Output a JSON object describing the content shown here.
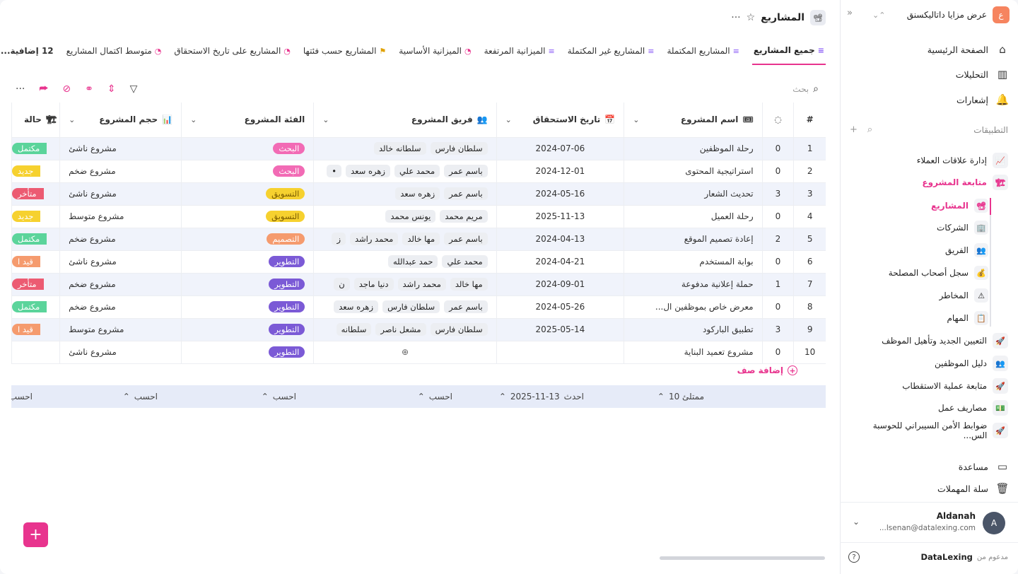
{
  "workspace": {
    "badge": "ع",
    "name": "عرض مزايا داتاليكسنق"
  },
  "nav": [
    {
      "label": "الصفحة الرئيسية",
      "icon": "home-icon"
    },
    {
      "label": "التحليلات",
      "icon": "analytics-icon"
    },
    {
      "label": "إشعارات",
      "icon": "bell-icon"
    }
  ],
  "apps_title": "التطبيقات",
  "apps": [
    {
      "label": "إدارة علاقات العملاء",
      "icon": "📈"
    },
    {
      "label": "متابعة المشروع",
      "icon": "🏗",
      "active": true
    }
  ],
  "sub_items": [
    {
      "label": "المشاريع",
      "icon": "📽",
      "active": true
    },
    {
      "label": "الشركات",
      "icon": "🏢"
    },
    {
      "label": "الفريق",
      "icon": "👥"
    },
    {
      "label": "سجل أصحاب المصلحة",
      "icon": "💰"
    },
    {
      "label": "المخاطر",
      "icon": "⚠"
    },
    {
      "label": "المهام",
      "icon": "📋"
    }
  ],
  "apps_more": [
    {
      "label": "التعيين الجديد وتأهيل الموظف",
      "icon": "🚀"
    },
    {
      "label": "دليل الموظفين",
      "icon": "👥"
    },
    {
      "label": "متابعة عملية الاستقطاب",
      "icon": "🚀"
    },
    {
      "label": "مصاريف عمل",
      "icon": "💵"
    },
    {
      "label": "ضوابط الأمن السيبراني للحوسبة الس...",
      "icon": "🚀"
    }
  ],
  "bottom_nav": [
    {
      "label": "مساعدة",
      "icon": "help-book-icon"
    },
    {
      "label": "سلة المهملات",
      "icon": "trash-icon"
    }
  ],
  "user": {
    "initial": "A",
    "name": "Aldanah",
    "email": "...lsenan@datalexing.com"
  },
  "powered": {
    "prefix": "مدعوم من",
    "brand": "DataLexing"
  },
  "page": {
    "title": "المشاريع",
    "icon": "📽"
  },
  "tabs": [
    {
      "label": "جميع المشاريع",
      "icon": "≡",
      "active": true
    },
    {
      "label": "المشاريع المكتملة",
      "icon": "≡"
    },
    {
      "label": "المشاريع غير المكتملة",
      "icon": "≡"
    },
    {
      "label": "الميزانية المرتفعة",
      "icon": "≡"
    },
    {
      "label": "الميزانية الأساسية",
      "icon": "◔",
      "color": "pink"
    },
    {
      "label": "المشاريع حسب فئتها",
      "icon": "⚑",
      "color": "gold"
    },
    {
      "label": "المشاريع على تاريخ الاستحقاق",
      "icon": "◔",
      "color": "pink"
    },
    {
      "label": "متوسط اكتمال المشاريع",
      "icon": "◔",
      "color": "pink"
    },
    {
      "label": "12 إضافية..."
    }
  ],
  "search_placeholder": "بحث",
  "columns": {
    "num": "#",
    "name": "اسم المشروع",
    "date": "تاريخ الاستحقاق",
    "team": "فريق المشروع",
    "category": "الفئة المشروع",
    "size": "حجم المشروع",
    "status": "حالة"
  },
  "rows": [
    {
      "n": "1",
      "name": "رحلة الموظفين",
      "c": "0",
      "date": "2024-07-06",
      "team": [
        "سلطان فارس",
        "سلطانه خالد"
      ],
      "cat": "البحث",
      "catClass": "pill-research",
      "size": "مشروع ناشئ",
      "status": "مكتمل",
      "stClass": "st-green"
    },
    {
      "n": "2",
      "name": "استراتيجية المحتوى",
      "c": "0",
      "date": "2024-12-01",
      "team": [
        "باسم عمر",
        "محمد علي",
        "زهره سعد",
        "•"
      ],
      "cat": "البحث",
      "catClass": "pill-research",
      "size": "مشروع ضخم",
      "status": "جديد",
      "stClass": "st-yellow"
    },
    {
      "n": "3",
      "name": "تحديث الشعار",
      "c": "3",
      "date": "2024-05-16",
      "team": [
        "باسم عمر",
        "زهره سعد"
      ],
      "cat": "التسويق",
      "catClass": "pill-marketing",
      "size": "مشروع ناشئ",
      "status": "متأخر",
      "stClass": "st-red"
    },
    {
      "n": "4",
      "name": "رحلة العميل",
      "c": "0",
      "date": "2025-11-13",
      "team": [
        "مريم محمد",
        "يونس محمد"
      ],
      "cat": "التسويق",
      "catClass": "pill-marketing",
      "size": "مشروع متوسط",
      "status": "جديد",
      "stClass": "st-yellow"
    },
    {
      "n": "5",
      "name": "إعادة تصميم الموقع",
      "c": "2",
      "date": "2024-04-13",
      "team": [
        "باسم عمر",
        "مها خالد",
        "محمد راشد",
        "ز"
      ],
      "cat": "التصميم",
      "catClass": "pill-design",
      "size": "مشروع ضخم",
      "status": "مكتمل",
      "stClass": "st-green"
    },
    {
      "n": "6",
      "name": "بوابة المستخدم",
      "c": "0",
      "date": "2024-04-21",
      "team": [
        "محمد علي",
        "حمد عبدالله"
      ],
      "cat": "التطوير",
      "catClass": "pill-dev",
      "size": "مشروع ناشئ",
      "status": "قيد ا",
      "stClass": "st-orange"
    },
    {
      "n": "7",
      "name": "حملة إعلانية مدفوعة",
      "c": "1",
      "date": "2024-09-01",
      "team": [
        "مها خالد",
        "محمد راشد",
        "دنيا ماجد",
        "ن"
      ],
      "cat": "التطوير",
      "catClass": "pill-dev",
      "size": "مشروع ضخم",
      "status": "متأخر",
      "stClass": "st-red"
    },
    {
      "n": "8",
      "name": "معرض خاص بموظفين ال...",
      "c": "0",
      "date": "2024-05-26",
      "team": [
        "باسم عمر",
        "سلطان فارس",
        "زهره سعد"
      ],
      "cat": "التطوير",
      "catClass": "pill-dev",
      "size": "مشروع ضخم",
      "status": "مكتمل",
      "stClass": "st-green"
    },
    {
      "n": "9",
      "name": "تطبيق الباركود",
      "c": "3",
      "date": "2025-05-14",
      "team": [
        "سلطان فارس",
        "مشعل ناصر",
        "سلطانه"
      ],
      "cat": "التطوير",
      "catClass": "pill-dev",
      "size": "مشروع متوسط",
      "status": "قيد ا",
      "stClass": "st-orange"
    },
    {
      "n": "10",
      "name": "مشروع تعميد البناية",
      "c": "0",
      "date": "",
      "team": [],
      "cat": "التطوير",
      "catClass": "pill-dev",
      "size": "مشروع ناشئ",
      "status": "",
      "stClass": ""
    }
  ],
  "add_row_label": "إضافة صف",
  "footer": {
    "filled": "ممتلئ 10",
    "latest_label": "احدث",
    "latest_value": "2025-11-13",
    "calc": "احسب"
  }
}
